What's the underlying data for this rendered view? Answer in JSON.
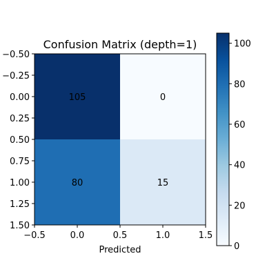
{
  "chart_data": {
    "type": "heatmap",
    "title": "Confusion Matrix (depth=1)",
    "xlabel": "Predicted",
    "ylabel": "",
    "matrix": [
      [
        105,
        0
      ],
      [
        80,
        15
      ]
    ],
    "xlim": [
      -0.5,
      1.5
    ],
    "ylim": [
      1.5,
      -0.5
    ],
    "x_ticks": [
      -0.5,
      0.0,
      0.5,
      1.0,
      1.5
    ],
    "x_tick_labels": [
      "−0.5",
      "0.0",
      "0.5",
      "1.0",
      "1.5"
    ],
    "y_ticks": [
      -0.5,
      -0.25,
      0.0,
      0.25,
      0.5,
      0.75,
      1.0,
      1.25,
      1.5
    ],
    "y_tick_labels": [
      "−0.50",
      "−0.25",
      "0.00",
      "0.25",
      "0.50",
      "0.75",
      "1.00",
      "1.25",
      "1.50"
    ],
    "colormap": "Blues",
    "colorbar": {
      "range": [
        0,
        105
      ],
      "ticks": [
        0,
        20,
        40,
        60,
        80,
        100
      ],
      "tick_labels": [
        "0",
        "20",
        "40",
        "60",
        "80",
        "100"
      ]
    },
    "grid": false
  }
}
